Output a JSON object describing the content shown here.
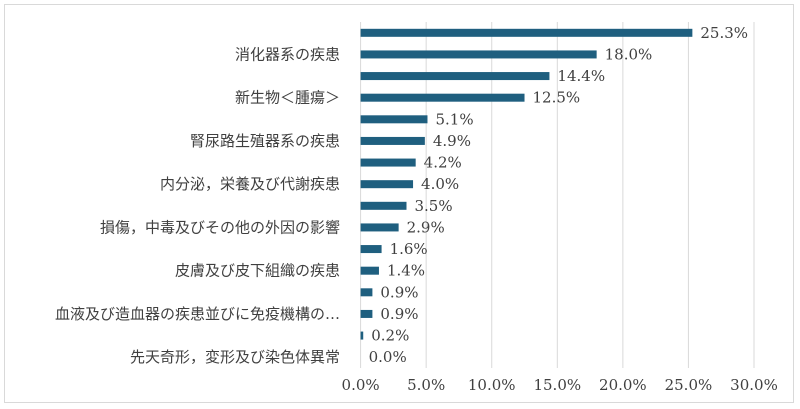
{
  "chart_data": {
    "type": "bar",
    "orientation": "horizontal",
    "bar_color": "#1f5f7f",
    "grid_color": "#d9d9d9",
    "categories": [
      "",
      "消化器系の疾患",
      "",
      "新生物＜腫瘍＞",
      "",
      "腎尿路生殖器系の疾患",
      "",
      "内分泌，栄養及び代謝疾患",
      "",
      "損傷，中毒及びその他の外因の影響",
      "",
      "皮膚及び皮下組織の疾患",
      "",
      "血液及び造血器の疾患並びに免疫機構の…",
      "",
      "先天奇形，変形及び染色体異常"
    ],
    "values": [
      25.3,
      18.0,
      14.4,
      12.5,
      5.1,
      4.9,
      4.2,
      4.0,
      3.5,
      2.9,
      1.6,
      1.4,
      0.9,
      0.9,
      0.2,
      0.0
    ],
    "data_labels": [
      "25.3%",
      "18.0%",
      "14.4%",
      "12.5%",
      "5.1%",
      "4.9%",
      "4.2%",
      "4.0%",
      "3.5%",
      "2.9%",
      "1.6%",
      "1.4%",
      "0.9%",
      "0.9%",
      "0.2%",
      "0.0%"
    ],
    "xlim": [
      0,
      30
    ],
    "x_ticks": [
      0,
      5,
      10,
      15,
      20,
      25,
      30
    ],
    "x_tick_labels": [
      "0.0%",
      "5.0%",
      "10.0%",
      "15.0%",
      "20.0%",
      "25.0%",
      "30.0%"
    ],
    "grid": true,
    "title": "",
    "xlabel": "",
    "ylabel": ""
  }
}
